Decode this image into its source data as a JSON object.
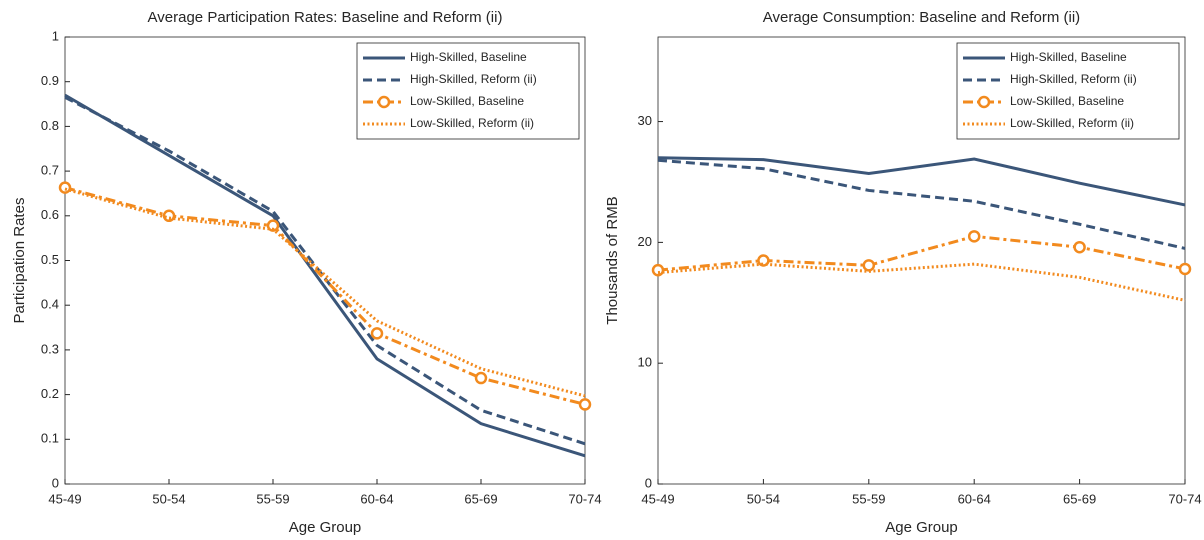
{
  "chart_data": [
    {
      "type": "line",
      "title": "Average Participation Rates: Baseline and Reform (ii)",
      "x_label": "Age Group",
      "y_label": "Participation Rates",
      "categories": [
        "45-49",
        "50-54",
        "55-59",
        "60-64",
        "65-69",
        "70-74"
      ],
      "ylim": [
        0,
        1
      ],
      "yticks": [
        0,
        0.1,
        0.2,
        0.3,
        0.4,
        0.5,
        0.6,
        0.7,
        0.8,
        0.9,
        1
      ],
      "grid": false,
      "legend": "upper right",
      "series": [
        {
          "name": "High-Skilled, Baseline",
          "color": "#3b5679",
          "line_style": "solid",
          "values": [
            0.87,
            0.735,
            0.6,
            0.28,
            0.135,
            0.063
          ]
        },
        {
          "name": "High-Skilled, Reform (ii)",
          "color": "#3b5679",
          "line_style": "dashed",
          "values": [
            0.865,
            0.745,
            0.61,
            0.31,
            0.165,
            0.09
          ]
        },
        {
          "name": "Low-Skilled, Baseline",
          "color": "#f28a1e",
          "line_style": "dashdot",
          "marker": "circle",
          "values": [
            0.663,
            0.6,
            0.578,
            0.337,
            0.237,
            0.178
          ]
        },
        {
          "name": "Low-Skilled, Reform (ii)",
          "color": "#f28a1e",
          "line_style": "dotted",
          "values": [
            0.66,
            0.595,
            0.57,
            0.365,
            0.258,
            0.197
          ]
        }
      ]
    },
    {
      "type": "line",
      "title": "Average Consumption: Baseline and Reform (ii)",
      "x_label": "Age Group",
      "y_label": "Thousands of RMB",
      "categories": [
        "45-49",
        "50-54",
        "55-59",
        "60-64",
        "65-69",
        "70-74"
      ],
      "ylim": [
        0,
        37
      ],
      "yticks": [
        0,
        10,
        20,
        30
      ],
      "grid": false,
      "legend": "upper right",
      "series": [
        {
          "name": "High-Skilled, Baseline",
          "color": "#3b5679",
          "line_style": "solid",
          "values": [
            27.0,
            26.85,
            25.7,
            26.9,
            24.9,
            23.1
          ]
        },
        {
          "name": "High-Skilled, Reform (ii)",
          "color": "#3b5679",
          "line_style": "dashed",
          "values": [
            26.8,
            26.1,
            24.3,
            23.4,
            21.5,
            19.5
          ]
        },
        {
          "name": "Low-Skilled, Baseline",
          "color": "#f28a1e",
          "line_style": "dashdot",
          "marker": "circle",
          "values": [
            17.7,
            18.5,
            18.1,
            20.5,
            19.6,
            17.8
          ]
        },
        {
          "name": "Low-Skilled, Reform (ii)",
          "color": "#f28a1e",
          "line_style": "dotted",
          "values": [
            17.5,
            18.2,
            17.6,
            18.2,
            17.1,
            15.2
          ]
        }
      ]
    }
  ]
}
